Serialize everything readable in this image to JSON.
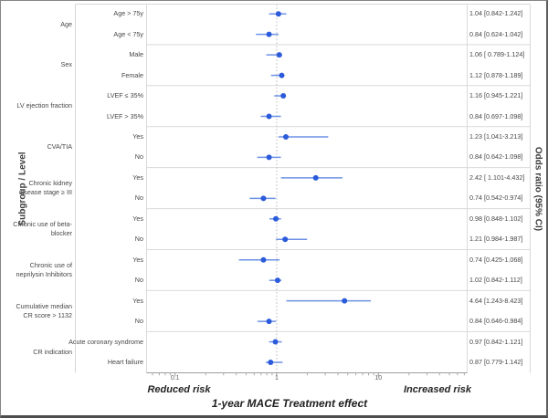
{
  "chart_data": {
    "type": "scatter",
    "subtype": "forest-plot",
    "x_scale": "log",
    "xlabel": "1-year MACE Treatment effect",
    "left_axis_title": "Subgroup / Level",
    "right_axis_title": "Odds ratio (95% CI)",
    "footer_left": "Reduced risk",
    "footer_right": "Increased risk",
    "reference_line_x": 1,
    "xlim": [
      0.055,
      74
    ],
    "x_ticks": [
      {
        "value": 0.1,
        "label": "0.1"
      },
      {
        "value": 1,
        "label": "1"
      },
      {
        "value": 10,
        "label": "10"
      }
    ],
    "colors": {
      "marker": "#2b5bdb",
      "ci_line": "#6d92e6",
      "grid": "#d9d9d9",
      "axis": "#9e9e9e",
      "reference": "#bdbdbd"
    },
    "groups": [
      {
        "label": "Age",
        "rows": [
          {
            "level": "Age > 75y",
            "or": 1.04,
            "ci_low": 0.842,
            "ci_high": 1.242,
            "display": "1.04 [0.842-1.242]"
          },
          {
            "level": "Age < 75y",
            "or": 0.84,
            "ci_low": 0.624,
            "ci_high": 1.042,
            "display": "0.84 [0.624-1.042]"
          }
        ]
      },
      {
        "label": "Sex",
        "rows": [
          {
            "level": "Male",
            "or": 1.06,
            "ci_low": 0.789,
            "ci_high": 1.124,
            "display": "1.06 [ 0.789-1.124]"
          },
          {
            "level": "Female",
            "or": 1.12,
            "ci_low": 0.878,
            "ci_high": 1.189,
            "display": "1.12 [0.878-1.189]"
          }
        ]
      },
      {
        "label": "LV ejection fraction",
        "rows": [
          {
            "level": "LVEF ≤ 35%",
            "or": 1.16,
            "ci_low": 0.945,
            "ci_high": 1.221,
            "display": "1.16 [0.945-1.221]"
          },
          {
            "level": "LVEF > 35%",
            "or": 0.84,
            "ci_low": 0.697,
            "ci_high": 1.098,
            "display": "0.84 [0.697-1.098]"
          }
        ]
      },
      {
        "label": "CVA/TIA",
        "rows": [
          {
            "level": "Yes",
            "or": 1.23,
            "ci_low": 1.041,
            "ci_high": 3.213,
            "display": "1.23 [1.041-3.213]"
          },
          {
            "level": "No",
            "or": 0.84,
            "ci_low": 0.642,
            "ci_high": 1.098,
            "display": "0.84 [0.642-1.098]"
          }
        ]
      },
      {
        "label": "Chronic kidney disease stage ≥ III",
        "rows": [
          {
            "level": "Yes",
            "or": 2.42,
            "ci_low": 1.101,
            "ci_high": 4.432,
            "display": "2.42 [ 1.101-4.432]"
          },
          {
            "level": "No",
            "or": 0.74,
            "ci_low": 0.542,
            "ci_high": 0.974,
            "display": "0.74 [0.542-0.974]"
          }
        ]
      },
      {
        "label": "Chronic use of beta-blocker",
        "rows": [
          {
            "level": "Yes",
            "or": 0.98,
            "ci_low": 0.848,
            "ci_high": 1.102,
            "display": "0.98 [0.848-1.102]"
          },
          {
            "level": "No",
            "or": 1.21,
            "ci_low": 0.984,
            "ci_high": 1.987,
            "display": "1.21 [0.984-1.987]"
          }
        ]
      },
      {
        "label": "Chronic use of neprilysin Inhibitors",
        "rows": [
          {
            "level": "Yes",
            "or": 0.74,
            "ci_low": 0.425,
            "ci_high": 1.068,
            "display": "0.74 [0.425-1.068]"
          },
          {
            "level": "No",
            "or": 1.02,
            "ci_low": 0.842,
            "ci_high": 1.112,
            "display": "1.02 [0.842-1.112]"
          }
        ]
      },
      {
        "label": "Cumulative median CR score > 1132",
        "rows": [
          {
            "level": "Yes",
            "or": 4.64,
            "ci_low": 1.243,
            "ci_high": 8.423,
            "display": "4.64 [1.243-8.423]"
          },
          {
            "level": "No",
            "or": 0.84,
            "ci_low": 0.646,
            "ci_high": 0.984,
            "display": "0.84 [0.646-0.984]"
          }
        ]
      },
      {
        "label": "CR indication",
        "rows": [
          {
            "level": "Acute coronary syndrome",
            "or": 0.97,
            "ci_low": 0.842,
            "ci_high": 1.121,
            "display": "0.97 [0.842-1.121]"
          },
          {
            "level": "Heart failure",
            "or": 0.87,
            "ci_low": 0.779,
            "ci_high": 1.142,
            "display": "0.87 [0.779-1.142]"
          }
        ]
      }
    ]
  }
}
